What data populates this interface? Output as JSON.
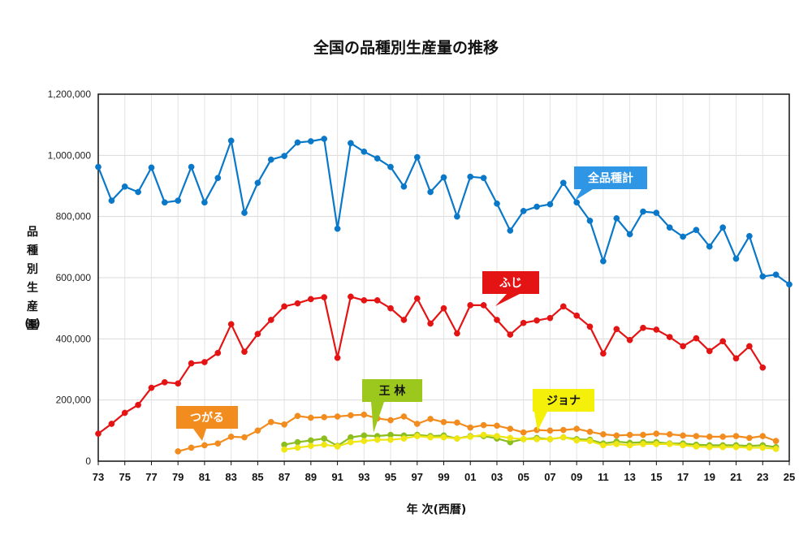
{
  "chart_data": {
    "type": "line",
    "title": "全国の品種別生産量の推移",
    "ylabel": "品種別生産量",
    "ylabel_unit": "(t)",
    "xlabel": "年 次(西暦)",
    "ylim": [
      0,
      1200000
    ],
    "yticks": [
      0,
      200000,
      400000,
      600000,
      800000,
      1000000,
      1200000
    ],
    "ytick_labels": [
      "0",
      "200,000",
      "400,000",
      "600,000",
      "800,000",
      "1,000,000",
      "1,200,000"
    ],
    "xlim": [
      1973,
      2025
    ],
    "xticks": [
      1973,
      1975,
      1977,
      1979,
      1981,
      1983,
      1985,
      1987,
      1989,
      1991,
      1993,
      1995,
      1997,
      1999,
      2001,
      2003,
      2005,
      2007,
      2009,
      2011,
      2013,
      2015,
      2017,
      2019,
      2021,
      2023,
      2025
    ],
    "xtick_labels": [
      "73",
      "75",
      "77",
      "79",
      "81",
      "83",
      "85",
      "87",
      "89",
      "91",
      "93",
      "95",
      "97",
      "99",
      "01",
      "03",
      "05",
      "07",
      "09",
      "11",
      "13",
      "15",
      "17",
      "19",
      "21",
      "23",
      "25"
    ],
    "grid": true,
    "series": [
      {
        "name": "全品種計",
        "color": "#0a78c8",
        "start": 1973,
        "values": [
          962000,
          852000,
          898000,
          880000,
          960000,
          846000,
          852000,
          962000,
          846000,
          926000,
          1048000,
          812000,
          910000,
          986000,
          998000,
          1042000,
          1046000,
          1054000,
          760000,
          1040000,
          1012000,
          990000,
          962000,
          898000,
          994000,
          880000,
          928000,
          800000,
          930000,
          926000,
          842000,
          754000,
          818000,
          832000,
          840000,
          910000,
          846000,
          786000,
          654000,
          794000,
          742000,
          816000,
          812000,
          764000,
          734000,
          756000,
          702000,
          764000,
          662000,
          736000,
          604000,
          610000,
          578000
        ]
      },
      {
        "name": "ふじ",
        "color": "#e41414",
        "start": 1973,
        "values": [
          90000,
          122000,
          158000,
          184000,
          240000,
          258000,
          254000,
          320000,
          324000,
          354000,
          448000,
          358000,
          416000,
          462000,
          506000,
          516000,
          530000,
          536000,
          338000,
          538000,
          526000,
          526000,
          500000,
          462000,
          532000,
          450000,
          500000,
          418000,
          510000,
          510000,
          462000,
          414000,
          452000,
          460000,
          468000,
          506000,
          476000,
          440000,
          352000,
          432000,
          396000,
          436000,
          430000,
          406000,
          376000,
          402000,
          360000,
          392000,
          336000,
          376000,
          306000
        ]
      },
      {
        "name": "つがる",
        "color": "#f28c1e",
        "start": 1979,
        "values": [
          32000,
          44000,
          52000,
          58000,
          80000,
          78000,
          100000,
          128000,
          120000,
          148000,
          142000,
          144000,
          146000,
          150000,
          152000,
          140000,
          134000,
          146000,
          122000,
          138000,
          128000,
          126000,
          110000,
          118000,
          116000,
          106000,
          94000,
          102000,
          100000,
          102000,
          106000,
          96000,
          88000,
          84000,
          86000,
          86000,
          90000,
          88000,
          84000,
          82000,
          80000,
          80000,
          82000,
          76000,
          82000,
          66000
        ]
      },
      {
        "name": "王 林",
        "color": "#8cbe1e",
        "start": 1987,
        "values": [
          54000,
          62000,
          68000,
          74000,
          50000,
          78000,
          84000,
          82000,
          86000,
          84000,
          86000,
          82000,
          84000,
          74000,
          82000,
          82000,
          74000,
          62000,
          72000,
          76000,
          72000,
          78000,
          72000,
          70000,
          58000,
          64000,
          60000,
          62000,
          62000,
          58000,
          58000,
          54000,
          52000,
          52000,
          52000,
          50000,
          52000,
          46000
        ]
      },
      {
        "name": "ジョナ",
        "color": "#f0e614",
        "start": 1987,
        "values": [
          38000,
          44000,
          50000,
          54000,
          48000,
          62000,
          66000,
          70000,
          70000,
          74000,
          82000,
          78000,
          78000,
          74000,
          80000,
          86000,
          82000,
          76000,
          72000,
          72000,
          72000,
          78000,
          68000,
          66000,
          52000,
          56000,
          52000,
          56000,
          56000,
          56000,
          52000,
          48000,
          46000,
          46000,
          46000,
          44000,
          44000,
          40000
        ]
      }
    ],
    "annotations": [
      {
        "text": "全品種計",
        "series": "全品種計",
        "fill": "#2f96e6",
        "text_color": "#ffffff"
      },
      {
        "text": "ふじ",
        "series": "ふじ",
        "fill": "#e41414",
        "text_color": "#ffffff"
      },
      {
        "text": "つがる",
        "series": "つがる",
        "fill": "#f28c1e",
        "text_color": "#ffffff"
      },
      {
        "text": "王 林",
        "series": "王 林",
        "fill": "#9cc81e",
        "text_color": "#111111"
      },
      {
        "text": "ジョナ",
        "series": "ジョナ",
        "fill": "#f5f00a",
        "text_color": "#111111"
      }
    ]
  }
}
